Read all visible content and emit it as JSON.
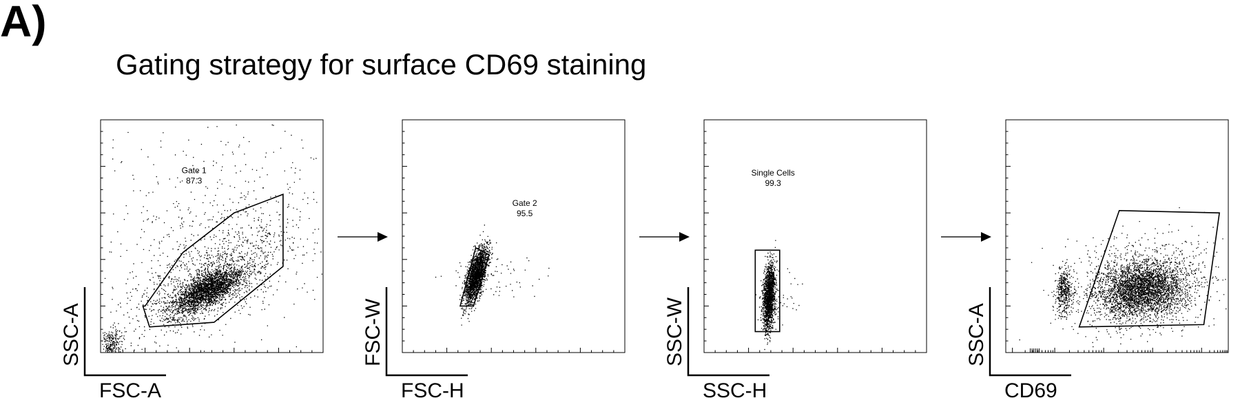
{
  "figure": {
    "panel_label": "A)",
    "title": "Gating strategy for surface CD69 staining"
  },
  "chart_data": [
    {
      "type": "scatter",
      "xlabel": "FSC-A",
      "ylabel": "SSC-A",
      "x_scale": "linear",
      "y_scale": "linear",
      "gate": {
        "name": "Gate 1",
        "percent": "87.3",
        "shape": "polygon",
        "vertices": [
          [
            0.2,
            0.2
          ],
          [
            0.37,
            0.43
          ],
          [
            0.6,
            0.6
          ],
          [
            0.82,
            0.68
          ],
          [
            0.82,
            0.37
          ],
          [
            0.51,
            0.13
          ],
          [
            0.22,
            0.11
          ],
          [
            0.19,
            0.2
          ]
        ]
      },
      "populations": [
        {
          "cx": 0.48,
          "cy": 0.27,
          "sx": 0.08,
          "sy": 0.05,
          "rho": 0.7,
          "n": 2600
        },
        {
          "cx": 0.5,
          "cy": 0.33,
          "sx": 0.18,
          "sy": 0.12,
          "rho": 0.6,
          "n": 1100
        },
        {
          "cx": 0.05,
          "cy": 0.04,
          "sx": 0.025,
          "sy": 0.03,
          "rho": 0.3,
          "n": 250
        },
        {
          "cx": 0.5,
          "cy": 0.55,
          "sx": 0.3,
          "sy": 0.25,
          "rho": 0.2,
          "n": 500
        }
      ]
    },
    {
      "type": "scatter",
      "xlabel": "FSC-H",
      "ylabel": "FSC-W",
      "x_scale": "linear",
      "y_scale": "linear",
      "gate": {
        "name": "Gate 2",
        "percent": "95.5",
        "shape": "polygon",
        "vertices": [
          [
            0.26,
            0.2
          ],
          [
            0.32,
            0.2
          ],
          [
            0.39,
            0.42
          ],
          [
            0.33,
            0.45
          ]
        ]
      },
      "populations": [
        {
          "cx": 0.33,
          "cy": 0.33,
          "sx": 0.025,
          "sy": 0.06,
          "rho": 0.65,
          "n": 2200
        },
        {
          "cx": 0.41,
          "cy": 0.33,
          "sx": 0.12,
          "sy": 0.05,
          "rho": 0.0,
          "n": 60
        }
      ]
    },
    {
      "type": "scatter",
      "xlabel": "SSC-H",
      "ylabel": "SSC-W",
      "x_scale": "linear",
      "y_scale": "linear",
      "gate": {
        "name": "Single Cells",
        "percent": "99.3",
        "shape": "rectangle",
        "vertices": [
          [
            0.23,
            0.09
          ],
          [
            0.34,
            0.09
          ],
          [
            0.34,
            0.44
          ],
          [
            0.23,
            0.44
          ]
        ]
      },
      "populations": [
        {
          "cx": 0.29,
          "cy": 0.24,
          "sx": 0.014,
          "sy": 0.07,
          "rho": 0.3,
          "n": 1800
        },
        {
          "cx": 0.34,
          "cy": 0.22,
          "sx": 0.05,
          "sy": 0.05,
          "rho": 0.0,
          "n": 40
        }
      ]
    },
    {
      "type": "scatter",
      "xlabel": "CD69",
      "ylabel": "SSC-A",
      "x_scale": "log",
      "y_scale": "linear",
      "gate": {
        "name": "",
        "percent": "",
        "shape": "polygon",
        "vertices": [
          [
            0.33,
            0.11
          ],
          [
            0.89,
            0.12
          ],
          [
            0.96,
            0.6
          ],
          [
            0.51,
            0.61
          ]
        ]
      },
      "populations": [
        {
          "cx": 0.61,
          "cy": 0.27,
          "sx": 0.1,
          "sy": 0.06,
          "rho": 0.15,
          "n": 3200
        },
        {
          "cx": 0.6,
          "cy": 0.3,
          "sx": 0.16,
          "sy": 0.1,
          "rho": 0.1,
          "n": 900
        },
        {
          "cx": 0.26,
          "cy": 0.26,
          "sx": 0.018,
          "sy": 0.05,
          "rho": 0.0,
          "n": 450
        }
      ]
    }
  ],
  "arrows": [
    "arrow-1-to-2",
    "arrow-2-to-3",
    "arrow-3-to-4"
  ]
}
